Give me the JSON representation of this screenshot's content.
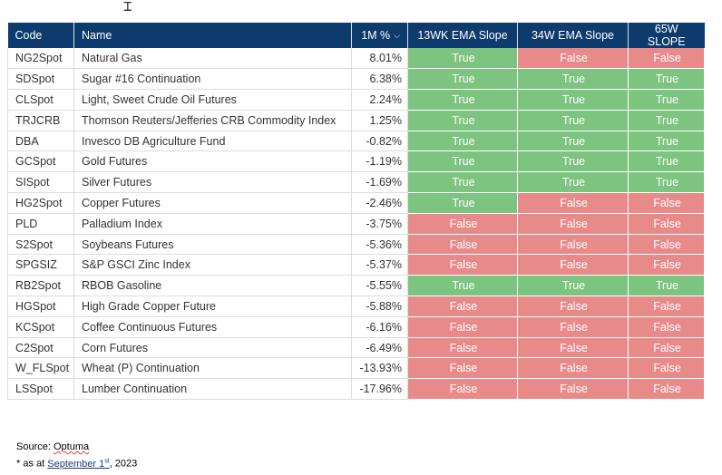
{
  "table": {
    "headers": {
      "code": "Code",
      "name": "Name",
      "pct": "1M %",
      "ema13": "13WK EMA Slope",
      "ema34": "34W EMA Slope",
      "slope65": "65W SLOPE"
    },
    "rows": [
      {
        "code": "NG2Spot",
        "name": "Natural Gas",
        "pct": "8.01%",
        "ema13": "True",
        "ema34": "False",
        "slope65": "False"
      },
      {
        "code": "SDSpot",
        "name": "Sugar #16 Continuation",
        "pct": "6.38%",
        "ema13": "True",
        "ema34": "True",
        "slope65": "True"
      },
      {
        "code": "CLSpot",
        "name": "Light, Sweet Crude Oil Futures",
        "pct": "2.24%",
        "ema13": "True",
        "ema34": "True",
        "slope65": "True"
      },
      {
        "code": "TRJCRB",
        "name": "Thomson Reuters/Jefferies CRB Commodity Index",
        "pct": "1.25%",
        "ema13": "True",
        "ema34": "True",
        "slope65": "True"
      },
      {
        "code": "DBA",
        "name": "Invesco DB Agriculture Fund",
        "pct": "-0.82%",
        "ema13": "True",
        "ema34": "True",
        "slope65": "True"
      },
      {
        "code": "GCSpot",
        "name": "Gold Futures",
        "pct": "-1.19%",
        "ema13": "True",
        "ema34": "True",
        "slope65": "True"
      },
      {
        "code": "SISpot",
        "name": "Silver Futures",
        "pct": "-1.69%",
        "ema13": "True",
        "ema34": "True",
        "slope65": "True"
      },
      {
        "code": "HG2Spot",
        "name": "Copper Futures",
        "pct": "-2.46%",
        "ema13": "True",
        "ema34": "False",
        "slope65": "False"
      },
      {
        "code": "PLD",
        "name": "Palladium Index",
        "pct": "-3.75%",
        "ema13": "False",
        "ema34": "False",
        "slope65": "False"
      },
      {
        "code": "S2Spot",
        "name": "Soybeans Futures",
        "pct": "-5.36%",
        "ema13": "False",
        "ema34": "False",
        "slope65": "False"
      },
      {
        "code": "SPGSIZ",
        "name": "S&P GSCI Zinc Index",
        "pct": "-5.37%",
        "ema13": "False",
        "ema34": "False",
        "slope65": "False"
      },
      {
        "code": "RB2Spot",
        "name": "RBOB Gasoline",
        "pct": "-5.55%",
        "ema13": "True",
        "ema34": "True",
        "slope65": "True"
      },
      {
        "code": "HGSpot",
        "name": "High Grade Copper Future",
        "pct": "-5.88%",
        "ema13": "False",
        "ema34": "False",
        "slope65": "False"
      },
      {
        "code": "KCSpot",
        "name": "Coffee Continuous Futures",
        "pct": "-6.16%",
        "ema13": "False",
        "ema34": "False",
        "slope65": "False"
      },
      {
        "code": "C2Spot",
        "name": "Corn Futures",
        "pct": "-6.49%",
        "ema13": "False",
        "ema34": "False",
        "slope65": "False"
      },
      {
        "code": "W_FLSpot",
        "name": "Wheat (P) Continuation",
        "pct": "-13.93%",
        "ema13": "False",
        "ema34": "False",
        "slope65": "False"
      },
      {
        "code": "LSSpot",
        "name": "Lumber Continuation",
        "pct": "-17.96%",
        "ema13": "False",
        "ema34": "False",
        "slope65": "False"
      }
    ]
  },
  "footer": {
    "source_prefix": "Source: ",
    "source_name": "Optuma",
    "asat_prefix": "* as at ",
    "asat_date": "September  1",
    "asat_sup": "st",
    "asat_year": ", 2023"
  },
  "colors": {
    "header_bg": "#0e3b6e",
    "true_bg": "#7cc47f",
    "false_bg": "#e98a8a"
  },
  "icons": {
    "sort": "chevron-down-icon",
    "cursor": "text-cursor-icon"
  }
}
